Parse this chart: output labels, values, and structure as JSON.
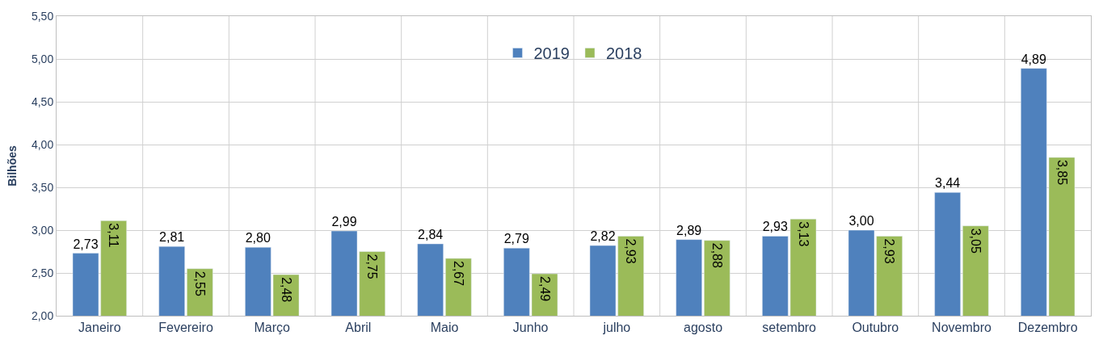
{
  "chart_data": {
    "type": "bar",
    "ylabel": "Bilhões",
    "categories": [
      "Janeiro",
      "Fevereiro",
      "Março",
      "Abril",
      "Maio",
      "Junho",
      "julho",
      "agosto",
      "setembro",
      "Outubro",
      "Novembro",
      "Dezembro"
    ],
    "series": [
      {
        "name": "2019",
        "color": "#4f81bd",
        "values": [
          2.73,
          2.81,
          2.8,
          2.99,
          2.84,
          2.79,
          2.82,
          2.89,
          2.93,
          3.0,
          3.44,
          4.89
        ],
        "value_labels": [
          "2,73",
          "2,81",
          "2,80",
          "2,99",
          "2,84",
          "2,79",
          "2,82",
          "2,89",
          "2,93",
          "3,00",
          "3,44",
          "4,89"
        ]
      },
      {
        "name": "2018",
        "color": "#9bbb59",
        "values": [
          3.11,
          2.55,
          2.48,
          2.75,
          2.67,
          2.49,
          2.93,
          2.88,
          3.13,
          2.93,
          3.05,
          3.85
        ],
        "value_labels": [
          "3,11",
          "2,55",
          "2,48",
          "2,75",
          "2,67",
          "2,49",
          "2,93",
          "2,88",
          "3,13",
          "2,93",
          "3,05",
          "3,85"
        ]
      }
    ],
    "ylim": [
      2.0,
      5.5
    ],
    "yticks": [
      {
        "value": 2.0,
        "label": "2,00"
      },
      {
        "value": 2.5,
        "label": "2,50"
      },
      {
        "value": 3.0,
        "label": "3,00"
      },
      {
        "value": 3.5,
        "label": "3,50"
      },
      {
        "value": 4.0,
        "label": "4,00"
      },
      {
        "value": 4.5,
        "label": "4,50"
      },
      {
        "value": 5.0,
        "label": "5,00"
      },
      {
        "value": 5.5,
        "label": "5,50"
      }
    ],
    "grid": true,
    "legend": "top"
  }
}
